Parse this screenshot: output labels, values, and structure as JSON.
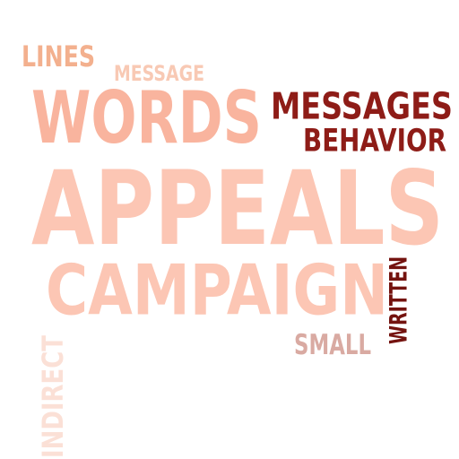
{
  "word_cloud": {
    "words": [
      {
        "id": "lines",
        "text": "LINES",
        "color": "#f3b08e"
      },
      {
        "id": "message",
        "text": "MESSAGE",
        "color": "#f8c9b4"
      },
      {
        "id": "words",
        "text": "WORDS",
        "color": "#f9b49e"
      },
      {
        "id": "messages",
        "text": "MESSAGES",
        "color": "#8e1c17"
      },
      {
        "id": "behavior",
        "text": "BEHAVIOR",
        "color": "#8e1c17"
      },
      {
        "id": "appeals",
        "text": "APPEALS",
        "color": "#fcc6b4"
      },
      {
        "id": "campaign",
        "text": "CAMPAIGN",
        "color": "#fcc6b4"
      },
      {
        "id": "written",
        "text": "WRITTEN",
        "color": "#74130f"
      },
      {
        "id": "small",
        "text": "SMALL",
        "color": "#d9aaa2"
      },
      {
        "id": "indirect",
        "text": "INDIRECT",
        "color": "#fbe0d6"
      }
    ]
  }
}
